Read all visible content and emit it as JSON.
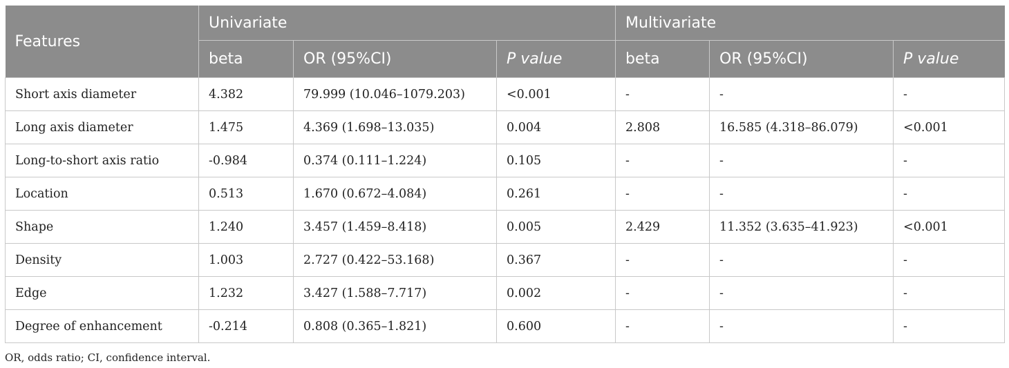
{
  "table": {
    "header": {
      "features": "Features",
      "univariate": "Univariate",
      "multivariate": "Multivariate",
      "sub": [
        "beta",
        "OR (95%CI)",
        "P value",
        "beta",
        "OR (95%CI)",
        "P value"
      ]
    },
    "rows": [
      [
        "Short axis diameter",
        "4.382",
        "79.999 (10.046–1079.203)",
        "<0.001",
        "-",
        "-",
        "-"
      ],
      [
        "Long axis diameter",
        "1.475",
        "4.369 (1.698–13.035)",
        "0.004",
        "2.808",
        "16.585 (4.318–86.079)",
        "<0.001"
      ],
      [
        "Long-to-short axis ratio",
        "-0.984",
        "0.374 (0.111–1.224)",
        "0.105",
        "-",
        "-",
        "-"
      ],
      [
        "Location",
        "0.513",
        "1.670 (0.672–4.084)",
        "0.261",
        "-",
        "-",
        "-"
      ],
      [
        "Shape",
        "1.240",
        "3.457 (1.459–8.418)",
        "0.005",
        "2.429",
        "11.352 (3.635–41.923)",
        "<0.001"
      ],
      [
        "Density",
        "1.003",
        "2.727 (0.422–53.168)",
        "0.367",
        "-",
        "-",
        "-"
      ],
      [
        "Edge",
        "1.232",
        "3.427 (1.588–7.717)",
        "0.002",
        "-",
        "-",
        "-"
      ],
      [
        "Degree of enhancement",
        "-0.214",
        "0.808 (0.365–1.821)",
        "0.600",
        "-",
        "-",
        "-"
      ]
    ]
  },
  "footnote": "OR, odds ratio; CI, confidence interval.",
  "colors": {
    "header_bg": "#8c8c8c",
    "header_text": "#ffffff",
    "border": "#c8c8c8"
  }
}
